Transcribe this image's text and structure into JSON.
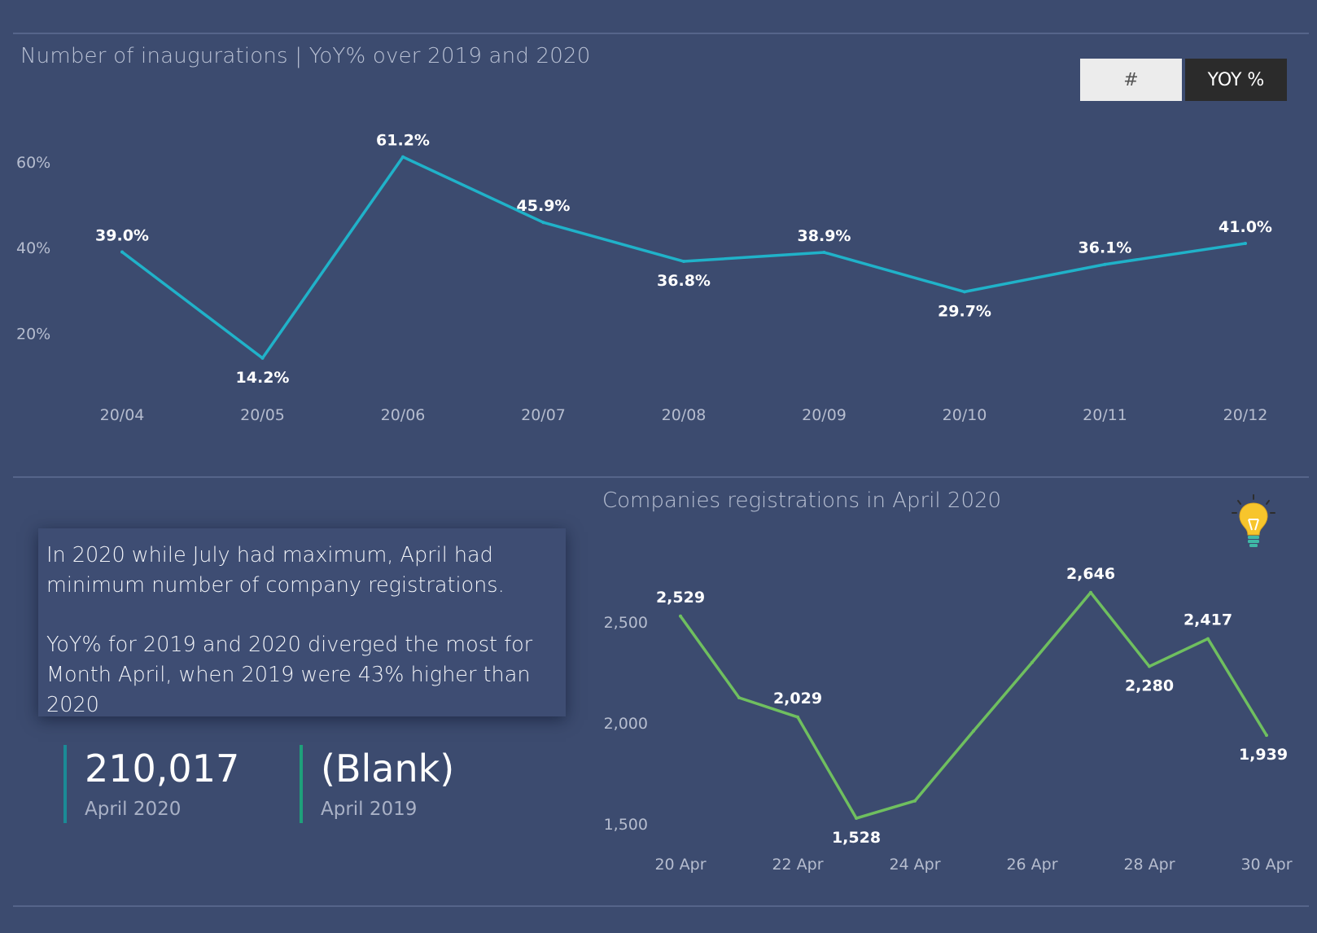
{
  "top_chart_title": "Number of inaugurations | YoY%  over 2019 and 2020",
  "toggle": {
    "hash_label": "#",
    "yoy_label": "YOY %"
  },
  "bottom_chart_title": "Companies registrations in April 2020",
  "note": {
    "p1": "In 2020 while July had maximum, April had minimum number of company registrations.",
    "p2": "YoY% for 2019 and 2020 diverged the most for Month April, when 2019 were 43% higher than 2020"
  },
  "kpis": [
    {
      "value": "210,017",
      "label": "April 2020",
      "color": "#1b8a96"
    },
    {
      "value": "(Blank)",
      "label": "April 2019",
      "color": "#1fa07a"
    }
  ],
  "colors": {
    "background": "#3c4b6f",
    "line_yoy": "#20b2c9",
    "line_reg": "#6fbf5f"
  },
  "icons": {
    "lightbulb": "lightbulb-icon"
  },
  "chart_data": [
    {
      "type": "line",
      "categories": [
        "20/04",
        "20/05",
        "20/06",
        "20/07",
        "20/08",
        "20/09",
        "20/10",
        "20/11",
        "20/12"
      ],
      "values": [
        39.0,
        14.2,
        61.2,
        45.9,
        36.8,
        38.9,
        29.7,
        36.1,
        41.0
      ],
      "labels": [
        "39.0%",
        "14.2%",
        "61.2%",
        "45.9%",
        "36.8%",
        "38.9%",
        "29.7%",
        "36.1%",
        "41.0%"
      ],
      "yticks": [
        "20%",
        "40%",
        "60%"
      ],
      "ytick_values": [
        20,
        40,
        60
      ],
      "ylim": [
        10,
        64
      ],
      "grid": false
    },
    {
      "type": "line",
      "x": [
        "20 Apr",
        "21 Apr",
        "22 Apr",
        "23 Apr",
        "24 Apr",
        "25 Apr",
        "26 Apr",
        "27 Apr",
        "28 Apr",
        "29 Apr",
        "30 Apr"
      ],
      "values": [
        2529,
        2125,
        2029,
        1528,
        1614,
        1960,
        2300,
        2646,
        2280,
        2417,
        1939
      ],
      "labels": [
        "2,529",
        "",
        "2,029",
        "1,528",
        "",
        "",
        "",
        "2,646",
        "2,280",
        "2,417",
        "1,939"
      ],
      "xticks": [
        "20 Apr",
        "22 Apr",
        "24 Apr",
        "26 Apr",
        "28 Apr",
        "30 Apr"
      ],
      "yticks": [
        "1,500",
        "2,000",
        "2,500"
      ],
      "ytick_values": [
        1500,
        2000,
        2500
      ],
      "ylim": [
        1400,
        2800
      ],
      "grid": false
    }
  ]
}
